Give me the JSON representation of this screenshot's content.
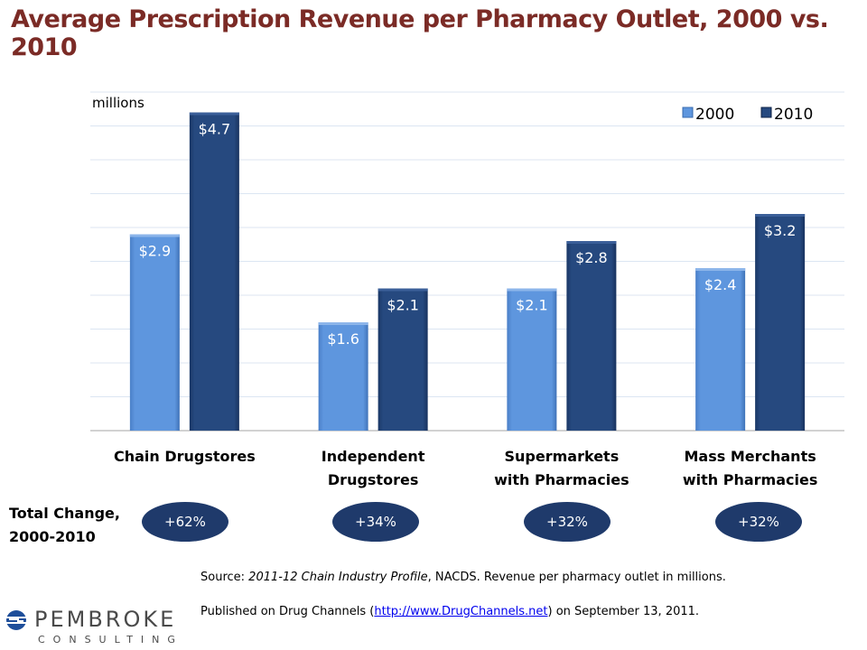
{
  "title": "Average Prescription Revenue per Pharmacy Outlet, 2000 vs. 2010",
  "chart_data": {
    "type": "bar",
    "title": "Average Prescription Revenue per Pharmacy Outlet, 2000 vs. 2010",
    "ylabel": "millions",
    "ylim": [
      0,
      5
    ],
    "grid": true,
    "legend_position": "top-right",
    "categories": [
      [
        "Chain Drugstores"
      ],
      [
        "Independent",
        "Drugstores"
      ],
      [
        "Supermarkets",
        "with Pharmacies"
      ],
      [
        "Mass Merchants",
        "with Pharmacies"
      ]
    ],
    "series": [
      {
        "name": "2000",
        "color": "#5b93dc",
        "values": [
          2.9,
          1.6,
          2.1,
          2.4
        ],
        "labels": [
          "$2.9",
          "$1.6",
          "$2.1",
          "$2.4"
        ]
      },
      {
        "name": "2010",
        "color": "#25487e",
        "values": [
          4.7,
          2.1,
          2.8,
          3.2
        ],
        "labels": [
          "$4.7",
          "$2.1",
          "$2.8",
          "$3.2"
        ]
      }
    ]
  },
  "total_change": {
    "label_line1": "Total Change,",
    "label_line2": "2000-2010",
    "values": [
      "+62%",
      "+34%",
      "+32%",
      "+32%"
    ]
  },
  "source": {
    "prefix": "Source: ",
    "italic": "2011-12 Chain Industry Profile",
    "suffix": ", NACDS. Revenue per pharmacy outlet in millions."
  },
  "published": {
    "prefix": "Published on Drug Channels (",
    "link": "http://www.DrugChannels.net",
    "suffix": ")  on September 13, 2011."
  },
  "logo": {
    "name": "PEMBROKE",
    "sub": "CONSULTING"
  }
}
